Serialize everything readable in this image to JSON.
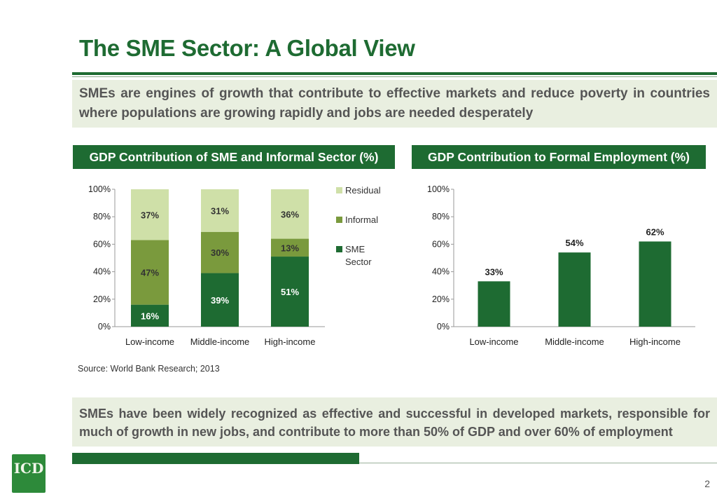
{
  "title": "The SME Sector: A Global View",
  "intro_callout": "SMEs are engines of growth that contribute to effective markets and reduce poverty in countries where populations are growing rapidly and jobs are needed desperately",
  "conclusion_callout": "SMEs have been widely recognized as effective and successful in developed markets, responsible for much of growth in new jobs, and contribute to more than 50% of GDP and over 60% of employment",
  "source": "Source: World Bank Research; 2013",
  "page_number": "2",
  "logo_text": "ICD",
  "colors": {
    "dark_green": "#1e6b32",
    "mid_green": "#7a9a3d",
    "light_green": "#cfe0a8",
    "callout_bg": "#e9efe0"
  },
  "chart_data": [
    {
      "type": "bar",
      "stacked": true,
      "title": "GDP Contribution of SME and Informal Sector (%)",
      "categories": [
        "Low-income",
        "Middle-income",
        "High-income"
      ],
      "series": [
        {
          "name": "SME Sector",
          "values": [
            16,
            39,
            51
          ],
          "labels": [
            "16%",
            "39%",
            "51%"
          ]
        },
        {
          "name": "Informal",
          "values": [
            47,
            30,
            13
          ],
          "labels": [
            "47%",
            "30%",
            "13%"
          ]
        },
        {
          "name": "Residual",
          "values": [
            37,
            31,
            36
          ],
          "labels": [
            "37%",
            "31%",
            "36%"
          ]
        }
      ],
      "legend": [
        "Residual",
        "Informal",
        "SME Sector"
      ],
      "yticks": [
        "0%",
        "20%",
        "40%",
        "60%",
        "80%",
        "100%"
      ],
      "ylim": [
        0,
        100
      ]
    },
    {
      "type": "bar",
      "title": "GDP Contribution to Formal Employment (%)",
      "categories": [
        "Low-income",
        "Middle-income",
        "High-income"
      ],
      "values": [
        33,
        54,
        62
      ],
      "labels": [
        "33%",
        "54%",
        "62%"
      ],
      "yticks": [
        "0%",
        "20%",
        "40%",
        "60%",
        "80%",
        "100%"
      ],
      "ylim": [
        0,
        100
      ]
    }
  ]
}
